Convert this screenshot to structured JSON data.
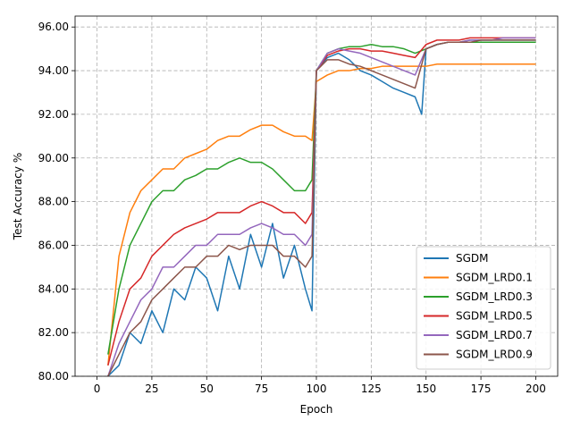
{
  "chart_data": {
    "type": "line",
    "title": "",
    "xlabel": "Epoch",
    "ylabel": "Test Accuracy %",
    "xlim": [
      -10,
      210
    ],
    "ylim": [
      80.0,
      96.5
    ],
    "xticks": [
      0,
      25,
      50,
      75,
      100,
      125,
      150,
      175,
      200
    ],
    "yticks": [
      "80.00",
      "82.00",
      "84.00",
      "86.00",
      "88.00",
      "90.00",
      "92.00",
      "94.00",
      "96.00"
    ],
    "grid": true,
    "legend_position": "lower right",
    "series": [
      {
        "name": "SGDM",
        "color": "#1f77b4",
        "x": [
          5,
          10,
          15,
          20,
          25,
          30,
          35,
          40,
          45,
          50,
          55,
          60,
          65,
          70,
          75,
          80,
          85,
          90,
          95,
          98,
          100,
          105,
          110,
          115,
          120,
          125,
          130,
          135,
          140,
          145,
          148,
          150,
          155,
          160,
          165,
          170,
          175,
          180,
          185,
          190,
          195,
          200
        ],
        "values": [
          80.0,
          80.5,
          82.0,
          81.5,
          83.0,
          82.0,
          84.0,
          83.5,
          85.0,
          84.5,
          83.0,
          85.5,
          84.0,
          86.5,
          85.0,
          87.0,
          84.5,
          86.0,
          84.0,
          83.0,
          94.0,
          94.6,
          94.8,
          94.5,
          94.0,
          93.8,
          93.5,
          93.2,
          93.0,
          92.8,
          92.0,
          95.0,
          95.2,
          95.3,
          95.3,
          95.4,
          95.4,
          95.4,
          95.4,
          95.4,
          95.4,
          95.4
        ]
      },
      {
        "name": "SGDM_LRD0.1",
        "color": "#ff7f0e",
        "x": [
          5,
          10,
          15,
          20,
          25,
          30,
          35,
          40,
          45,
          50,
          55,
          60,
          65,
          70,
          75,
          80,
          85,
          90,
          95,
          98,
          100,
          105,
          110,
          115,
          120,
          125,
          130,
          135,
          140,
          145,
          150,
          155,
          160,
          165,
          170,
          175,
          180,
          185,
          190,
          195,
          200
        ],
        "values": [
          80.5,
          85.5,
          87.5,
          88.5,
          89.0,
          89.5,
          89.5,
          90.0,
          90.2,
          90.4,
          90.8,
          91.0,
          91.0,
          91.3,
          91.5,
          91.5,
          91.2,
          91.0,
          91.0,
          90.8,
          93.5,
          93.8,
          94.0,
          94.0,
          94.1,
          94.1,
          94.2,
          94.2,
          94.2,
          94.2,
          94.2,
          94.3,
          94.3,
          94.3,
          94.3,
          94.3,
          94.3,
          94.3,
          94.3,
          94.3,
          94.3
        ]
      },
      {
        "name": "SGDM_LRD0.3",
        "color": "#2ca02c",
        "x": [
          5,
          10,
          15,
          20,
          25,
          30,
          35,
          40,
          45,
          50,
          55,
          60,
          65,
          70,
          75,
          80,
          85,
          90,
          95,
          98,
          100,
          105,
          110,
          115,
          120,
          125,
          130,
          135,
          140,
          145,
          150,
          155,
          160,
          165,
          170,
          175,
          180,
          185,
          190,
          195,
          200
        ],
        "values": [
          81.0,
          84.0,
          86.0,
          87.0,
          88.0,
          88.5,
          88.5,
          89.0,
          89.2,
          89.5,
          89.5,
          89.8,
          90.0,
          89.8,
          89.8,
          89.5,
          89.0,
          88.5,
          88.5,
          89.0,
          94.0,
          94.8,
          95.0,
          95.1,
          95.1,
          95.2,
          95.1,
          95.1,
          95.0,
          94.8,
          95.0,
          95.2,
          95.3,
          95.3,
          95.3,
          95.3,
          95.3,
          95.3,
          95.3,
          95.3,
          95.3
        ]
      },
      {
        "name": "SGDM_LRD0.5",
        "color": "#d62728",
        "x": [
          5,
          10,
          15,
          20,
          25,
          30,
          35,
          40,
          45,
          50,
          55,
          60,
          65,
          70,
          75,
          80,
          85,
          90,
          95,
          98,
          100,
          105,
          110,
          115,
          120,
          125,
          130,
          135,
          140,
          145,
          150,
          155,
          160,
          165,
          170,
          175,
          180,
          185,
          190,
          195,
          200
        ],
        "values": [
          80.5,
          82.5,
          84.0,
          84.5,
          85.5,
          86.0,
          86.5,
          86.8,
          87.0,
          87.2,
          87.5,
          87.5,
          87.5,
          87.8,
          88.0,
          87.8,
          87.5,
          87.5,
          87.0,
          87.5,
          94.0,
          94.7,
          94.9,
          95.0,
          95.0,
          94.9,
          94.9,
          94.8,
          94.7,
          94.6,
          95.2,
          95.4,
          95.4,
          95.4,
          95.5,
          95.5,
          95.5,
          95.5,
          95.5,
          95.5,
          95.5
        ]
      },
      {
        "name": "SGDM_LRD0.7",
        "color": "#9467bd",
        "x": [
          5,
          10,
          15,
          20,
          25,
          30,
          35,
          40,
          45,
          50,
          55,
          60,
          65,
          70,
          75,
          80,
          85,
          90,
          95,
          98,
          100,
          105,
          110,
          115,
          120,
          125,
          130,
          135,
          140,
          145,
          150,
          155,
          160,
          165,
          170,
          175,
          180,
          185,
          190,
          195,
          200
        ],
        "values": [
          80.0,
          81.5,
          82.5,
          83.5,
          84.0,
          85.0,
          85.0,
          85.5,
          86.0,
          86.0,
          86.5,
          86.5,
          86.5,
          86.8,
          87.0,
          86.8,
          86.5,
          86.5,
          86.0,
          86.5,
          94.0,
          94.8,
          95.0,
          94.9,
          94.8,
          94.6,
          94.4,
          94.2,
          94.0,
          93.8,
          95.0,
          95.2,
          95.3,
          95.3,
          95.4,
          95.4,
          95.4,
          95.5,
          95.5,
          95.5,
          95.5
        ]
      },
      {
        "name": "SGDM_LRD0.9",
        "color": "#8c564b",
        "x": [
          5,
          10,
          15,
          20,
          25,
          30,
          35,
          40,
          45,
          50,
          55,
          60,
          65,
          70,
          75,
          80,
          85,
          90,
          95,
          98,
          100,
          105,
          110,
          115,
          120,
          125,
          130,
          135,
          140,
          145,
          150,
          155,
          160,
          165,
          170,
          175,
          180,
          185,
          190,
          195,
          200
        ],
        "values": [
          80.0,
          81.0,
          82.0,
          82.5,
          83.5,
          84.0,
          84.5,
          85.0,
          85.0,
          85.5,
          85.5,
          86.0,
          85.8,
          86.0,
          86.0,
          86.0,
          85.5,
          85.5,
          85.0,
          85.5,
          94.0,
          94.5,
          94.5,
          94.3,
          94.2,
          94.0,
          93.8,
          93.6,
          93.4,
          93.2,
          95.0,
          95.2,
          95.3,
          95.3,
          95.3,
          95.4,
          95.4,
          95.4,
          95.4,
          95.4,
          95.4
        ]
      }
    ]
  }
}
